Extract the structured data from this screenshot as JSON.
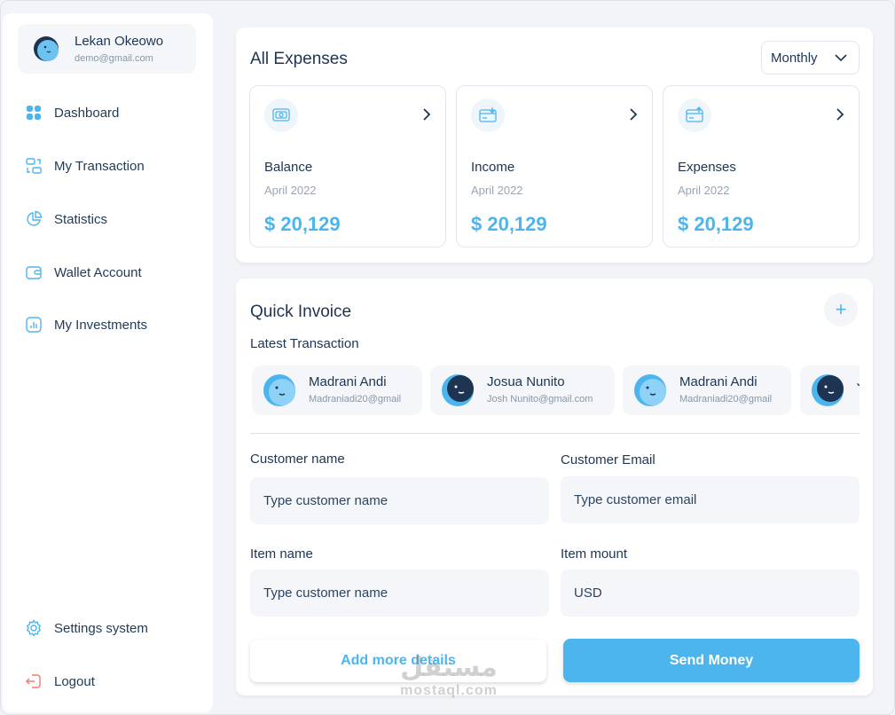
{
  "profile": {
    "name": "Lekan Okeowo",
    "email": "demo@gmail.com"
  },
  "sidebar": {
    "items": [
      {
        "label": "Dashboard",
        "icon": "dashboard-grid-icon"
      },
      {
        "label": "My Transaction",
        "icon": "transaction-icon"
      },
      {
        "label": "Statistics",
        "icon": "pie-chart-icon"
      },
      {
        "label": "Wallet Account",
        "icon": "wallet-icon"
      },
      {
        "label": "My Investments",
        "icon": "investment-icon"
      }
    ],
    "bottom_items": [
      {
        "label": "Settings system",
        "icon": "gear-icon"
      },
      {
        "label": "Logout",
        "icon": "logout-icon"
      }
    ]
  },
  "expenses": {
    "title": "All Expenses",
    "period": "Monthly",
    "cards": [
      {
        "name": "Balance",
        "date": "April 2022",
        "value": "$ 20,129",
        "icon": "balance-icon"
      },
      {
        "name": "Income",
        "date": "April 2022",
        "value": "$ 20,129",
        "icon": "income-icon"
      },
      {
        "name": "Expenses",
        "date": "April 2022",
        "value": "$ 20,129",
        "icon": "expenses-icon"
      }
    ]
  },
  "invoice": {
    "title": "Quick Invoice",
    "plus": "+",
    "latest_label": "Latest Transaction",
    "transactions": [
      {
        "name": "Madrani Andi",
        "email": "Madraniadi20@gmail"
      },
      {
        "name": "Josua Nunito",
        "email": "Josh Nunito@gmail.com"
      },
      {
        "name": "Madrani Andi",
        "email": "Madraniadi20@gmail"
      },
      {
        "name": "J",
        "email": ""
      }
    ],
    "fields": {
      "customer_name": {
        "label": "Customer name",
        "placeholder": "Type customer name"
      },
      "customer_email": {
        "label": "Customer Email",
        "placeholder": "Type customer email"
      },
      "item_name": {
        "label": "Item name",
        "placeholder": "Type customer name"
      },
      "item_mount": {
        "label": "Item mount",
        "placeholder": "USD"
      }
    },
    "add_details_label": "Add more details",
    "send_label": "Send Money"
  },
  "watermark": {
    "arabic": "مستقل",
    "latin": "mostaql.com"
  },
  "colors": {
    "accent": "#4db5ee",
    "dark_text": "#1d3552",
    "muted": "#9aa5b1",
    "avatar_dark": "#1d3552"
  }
}
